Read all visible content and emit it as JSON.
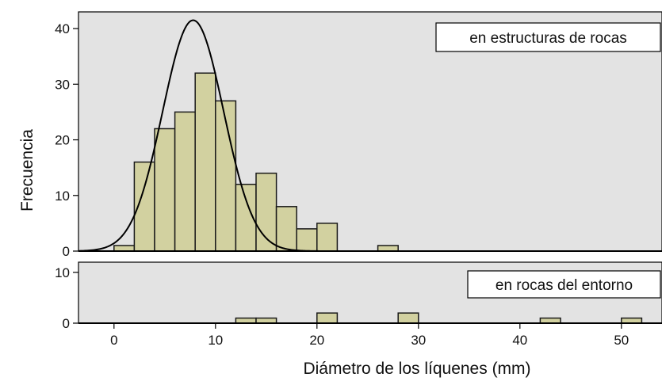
{
  "chart_data": {
    "type": "bar",
    "subtype": "histogram with normal curve overlay (two stacked panels)",
    "xlabel": "Diámetro de los líquenes (mm)",
    "ylabel": "Frecuencia",
    "xlim": [
      -3.5,
      54
    ],
    "x_ticks": [
      0,
      10,
      20,
      30,
      40,
      50
    ],
    "bin_width": 2,
    "colors": {
      "panel_bg": "#e3e3e3",
      "bar_fill": "#d2d1a0",
      "bar_stroke": "#1a1a1a",
      "curve": "#000000"
    },
    "grid": false,
    "panels": [
      {
        "label": "en estructuras de rocas",
        "ylim": [
          0,
          43
        ],
        "y_ticks": [
          0,
          10,
          20,
          30,
          40
        ],
        "bins": [
          {
            "x": 1,
            "count": 1
          },
          {
            "x": 3,
            "count": 16
          },
          {
            "x": 5,
            "count": 22
          },
          {
            "x": 7,
            "count": 25
          },
          {
            "x": 9,
            "count": 32
          },
          {
            "x": 11,
            "count": 27
          },
          {
            "x": 13,
            "count": 12
          },
          {
            "x": 15,
            "count": 14
          },
          {
            "x": 17,
            "count": 8
          },
          {
            "x": 19,
            "count": 4
          },
          {
            "x": 21,
            "count": 5
          },
          {
            "x": 27,
            "count": 1
          }
        ],
        "normal_curve": {
          "mean": 7.8,
          "sd": 3.0,
          "peak": 41.5
        }
      },
      {
        "label": "en rocas del entorno",
        "ylim": [
          0,
          12
        ],
        "y_ticks": [
          0,
          10
        ],
        "bins": [
          {
            "x": 13,
            "count": 1
          },
          {
            "x": 15,
            "count": 1
          },
          {
            "x": 21,
            "count": 2
          },
          {
            "x": 29,
            "count": 2
          },
          {
            "x": 43,
            "count": 1
          },
          {
            "x": 51,
            "count": 1
          }
        ]
      }
    ]
  }
}
